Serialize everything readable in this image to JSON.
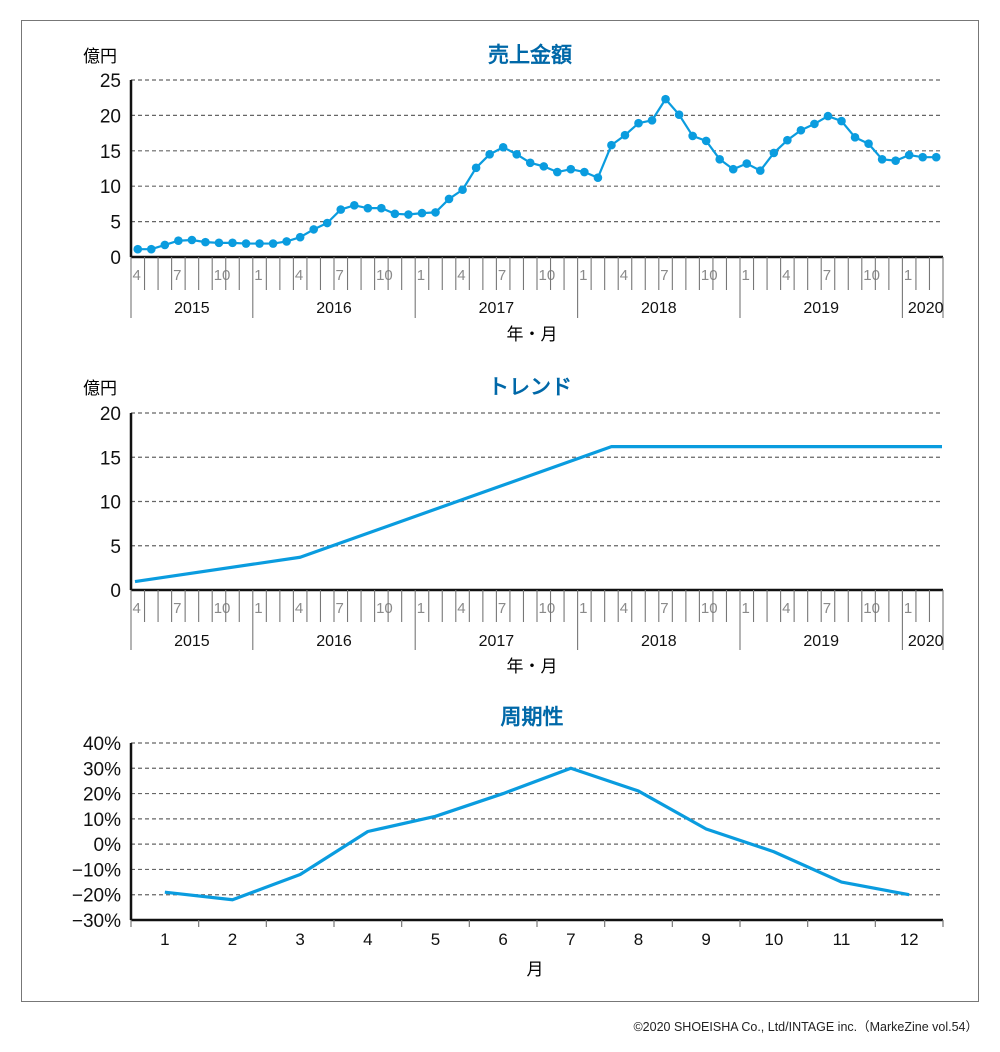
{
  "colors": {
    "title": "#0068A8",
    "line": "#0A9CDF",
    "axis": "#111111",
    "grid": "#666666",
    "tick": "#777777",
    "month_label": "#8a8a8a"
  },
  "footer": "©2020 SHOEISHA Co., Ltd/INTAGE inc.（MarkeZine vol.54）",
  "chart_data": [
    {
      "type": "line",
      "title": "売上金額",
      "ylabel": "億円",
      "xlabel": "年・月",
      "ylim": [
        0,
        25
      ],
      "yticks": [
        0,
        5,
        10,
        15,
        20,
        25
      ],
      "ytick_labels": [
        "0",
        "5",
        "10",
        "15",
        "20",
        "25"
      ],
      "grid": true,
      "markers": true,
      "start": {
        "year": 2015,
        "month": 4
      },
      "month_labels": [
        1,
        4,
        7,
        10
      ],
      "years": [
        "2015",
        "2016",
        "2017",
        "2018",
        "2019",
        "2020"
      ],
      "x": [
        "2015-04",
        "2015-05",
        "2015-06",
        "2015-07",
        "2015-08",
        "2015-09",
        "2015-10",
        "2015-11",
        "2015-12",
        "2016-01",
        "2016-02",
        "2016-03",
        "2016-04",
        "2016-05",
        "2016-06",
        "2016-07",
        "2016-08",
        "2016-09",
        "2016-10",
        "2016-11",
        "2016-12",
        "2017-01",
        "2017-02",
        "2017-03",
        "2017-04",
        "2017-05",
        "2017-06",
        "2017-07",
        "2017-08",
        "2017-09",
        "2017-10",
        "2017-11",
        "2017-12",
        "2018-01",
        "2018-02",
        "2018-03",
        "2018-04",
        "2018-05",
        "2018-06",
        "2018-07",
        "2018-08",
        "2018-09",
        "2018-10",
        "2018-11",
        "2018-12",
        "2019-01",
        "2019-02",
        "2019-03",
        "2019-04",
        "2019-05",
        "2019-06",
        "2019-07",
        "2019-08",
        "2019-09",
        "2019-10",
        "2019-11",
        "2019-12",
        "2020-01",
        "2020-02",
        "2020-03"
      ],
      "values": [
        1.1,
        1.1,
        1.7,
        2.3,
        2.4,
        2.1,
        2.0,
        2.0,
        1.9,
        1.9,
        1.9,
        2.2,
        2.8,
        3.9,
        4.8,
        6.7,
        7.3,
        6.9,
        6.9,
        6.1,
        6.0,
        6.2,
        6.3,
        8.2,
        9.5,
        12.6,
        14.5,
        15.5,
        14.5,
        13.3,
        12.8,
        12.0,
        12.4,
        12.0,
        11.2,
        15.8,
        17.2,
        18.9,
        19.3,
        22.3,
        20.1,
        17.1,
        16.4,
        13.8,
        12.4,
        13.2,
        12.2,
        14.7,
        16.5,
        17.9,
        18.8,
        19.9,
        19.2,
        16.9,
        16.0,
        13.8,
        13.6,
        14.4,
        14.1,
        14.1
      ]
    },
    {
      "type": "line",
      "title": "トレンド",
      "ylabel": "億円",
      "xlabel": "年・月",
      "ylim": [
        0,
        20
      ],
      "yticks": [
        0,
        5,
        10,
        15,
        20
      ],
      "ytick_labels": [
        "0",
        "5",
        "10",
        "15",
        "20"
      ],
      "grid": true,
      "markers": false,
      "start": {
        "year": 2015,
        "month": 4
      },
      "month_labels": [
        1,
        4,
        7,
        10
      ],
      "years": [
        "2015",
        "2016",
        "2017",
        "2018",
        "2019",
        "2020"
      ],
      "x": [
        "2015-04",
        "2016-04",
        "2018-03",
        "2020-03"
      ],
      "x_index": [
        0,
        12,
        35,
        59
      ],
      "values": [
        0.95,
        3.7,
        16.2,
        16.2
      ]
    },
    {
      "type": "line",
      "title": "周期性",
      "ylabel": "",
      "xlabel": "月",
      "ylim": [
        -30,
        40
      ],
      "yticks": [
        -30,
        -20,
        -10,
        0,
        10,
        20,
        30,
        40
      ],
      "ytick_labels": [
        "−30%",
        "−20%",
        "−10%",
        "0%",
        "10%",
        "20%",
        "30%",
        "40%"
      ],
      "grid": true,
      "markers": false,
      "categories": [
        "1",
        "2",
        "3",
        "4",
        "5",
        "6",
        "7",
        "8",
        "9",
        "10",
        "11",
        "12"
      ],
      "values": [
        -19,
        -22,
        -12,
        5,
        11,
        20,
        30,
        21,
        6,
        -3,
        -15,
        -20
      ],
      "unit": "%"
    }
  ]
}
